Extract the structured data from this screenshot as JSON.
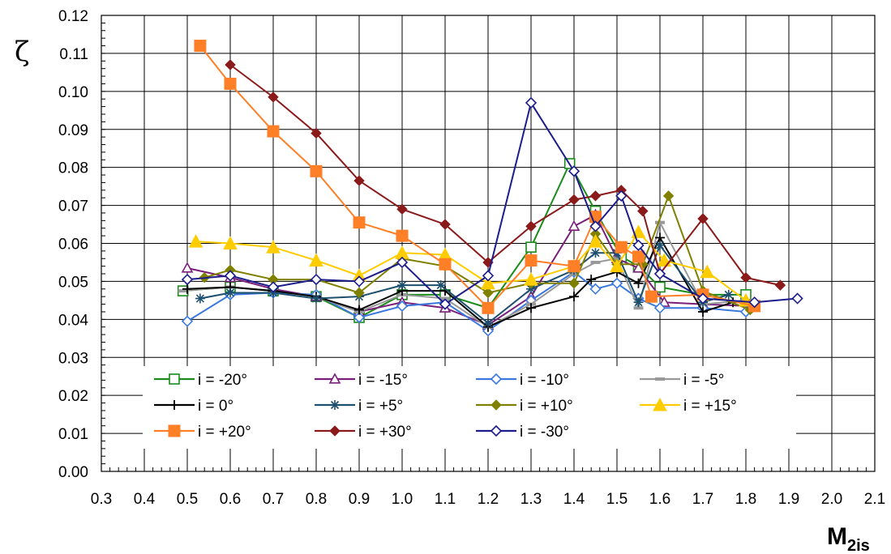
{
  "chart_data": {
    "type": "line",
    "title": "",
    "ylabel": "ζ",
    "xlabel": "M",
    "xlabel_sub": "2is",
    "xlim": [
      0.3,
      2.1
    ],
    "ylim": [
      0.0,
      0.12
    ],
    "x_ticks": [
      "0.3",
      "0.4",
      "0.5",
      "0.6",
      "0.7",
      "0.8",
      "0.9",
      "1.0",
      "1.1",
      "1.2",
      "1.3",
      "1.4",
      "1.5",
      "1.6",
      "1.7",
      "1.8",
      "1.9",
      "2.0",
      "2.1"
    ],
    "y_ticks": [
      "0.00",
      "0.01",
      "0.02",
      "0.03",
      "0.04",
      "0.05",
      "0.06",
      "0.07",
      "0.08",
      "0.09",
      "0.10",
      "0.11",
      "0.12"
    ],
    "grid": true,
    "legend_position": "bottom-inside",
    "series": [
      {
        "name": "i = -20°",
        "color": "#1a8c1a",
        "marker": "square-open",
        "x": [
          0.49,
          0.6,
          0.7,
          0.8,
          0.9,
          1.0,
          1.1,
          1.2,
          1.3,
          1.39,
          1.45,
          1.51,
          1.55,
          1.6,
          1.7,
          1.8
        ],
        "y": [
          0.0475,
          0.0485,
          0.0475,
          0.046,
          0.0405,
          0.0465,
          0.0465,
          0.043,
          0.059,
          0.081,
          0.0685,
          0.0565,
          0.054,
          0.0485,
          0.0465,
          0.0465
        ]
      },
      {
        "name": "i = -15°",
        "color": "#7a1f7a",
        "marker": "triangle-open",
        "x": [
          0.5,
          0.6,
          0.7,
          0.8,
          0.9,
          1.0,
          1.1,
          1.2,
          1.3,
          1.4,
          1.45,
          1.5,
          1.55,
          1.61,
          1.7,
          1.81
        ],
        "y": [
          0.0535,
          0.051,
          0.048,
          0.046,
          0.042,
          0.0445,
          0.043,
          0.0385,
          0.046,
          0.0645,
          0.0675,
          0.056,
          0.0535,
          0.0445,
          0.044,
          0.0435
        ]
      },
      {
        "name": "i = -10°",
        "color": "#3a78e0",
        "marker": "diamond-open",
        "x": [
          0.5,
          0.6,
          0.7,
          0.8,
          0.9,
          1.0,
          1.1,
          1.2,
          1.3,
          1.4,
          1.45,
          1.5,
          1.55,
          1.6,
          1.7,
          1.8
        ],
        "y": [
          0.0395,
          0.0465,
          0.047,
          0.0465,
          0.0405,
          0.0435,
          0.0445,
          0.037,
          0.045,
          0.0525,
          0.048,
          0.0495,
          0.0455,
          0.043,
          0.043,
          0.042
        ]
      },
      {
        "name": "i = -5°",
        "color": "#999999",
        "marker": "dash",
        "x": [
          0.49,
          0.6,
          0.7,
          0.8,
          0.9,
          1.0,
          1.1,
          1.2,
          1.3,
          1.4,
          1.45,
          1.5,
          1.55,
          1.6,
          1.7,
          1.8
        ],
        "y": [
          0.0475,
          0.0485,
          0.0475,
          0.046,
          0.042,
          0.0465,
          0.0455,
          0.038,
          0.044,
          0.052,
          0.055,
          0.056,
          0.043,
          0.0655,
          0.044,
          0.045
        ]
      },
      {
        "name": "i = 0°",
        "color": "#000000",
        "marker": "plus",
        "x": [
          0.5,
          0.6,
          0.7,
          0.8,
          0.9,
          1.0,
          1.1,
          1.2,
          1.3,
          1.4,
          1.44,
          1.5,
          1.55,
          1.6,
          1.7,
          1.77
        ],
        "y": [
          0.048,
          0.0485,
          0.0475,
          0.046,
          0.0425,
          0.0475,
          0.0475,
          0.038,
          0.043,
          0.046,
          0.0505,
          0.0525,
          0.0495,
          0.0615,
          0.042,
          0.0445
        ]
      },
      {
        "name": "i = +5°",
        "color": "#1d4f6e",
        "marker": "asterisk",
        "x": [
          0.53,
          0.6,
          0.7,
          0.8,
          0.9,
          1.0,
          1.09,
          1.2,
          1.3,
          1.4,
          1.45,
          1.5,
          1.55,
          1.6,
          1.7,
          1.76
        ],
        "y": [
          0.0455,
          0.047,
          0.047,
          0.0455,
          0.046,
          0.049,
          0.049,
          0.039,
          0.048,
          0.053,
          0.0575,
          0.0575,
          0.0445,
          0.0595,
          0.0445,
          0.0465
        ]
      },
      {
        "name": "i = +10°",
        "color": "#808000",
        "marker": "diamond",
        "x": [
          0.54,
          0.6,
          0.7,
          0.8,
          0.9,
          1.0,
          1.1,
          1.2,
          1.3,
          1.4,
          1.45,
          1.5,
          1.56,
          1.62,
          1.7,
          1.81
        ],
        "y": [
          0.051,
          0.053,
          0.0505,
          0.0505,
          0.047,
          0.056,
          0.054,
          0.047,
          0.0495,
          0.0495,
          0.0625,
          0.0545,
          0.0545,
          0.0725,
          0.0475,
          0.0425
        ]
      },
      {
        "name": "i = +15°",
        "color": "#ffcc00",
        "marker": "triangle",
        "x": [
          0.52,
          0.6,
          0.7,
          0.8,
          0.9,
          1.0,
          1.1,
          1.2,
          1.3,
          1.4,
          1.45,
          1.5,
          1.55,
          1.61,
          1.71,
          1.8
        ],
        "y": [
          0.0605,
          0.06,
          0.059,
          0.0555,
          0.0515,
          0.0575,
          0.057,
          0.0495,
          0.0505,
          0.054,
          0.0605,
          0.054,
          0.063,
          0.0555,
          0.0525,
          0.045
        ]
      },
      {
        "name": "i = +20°",
        "color": "#ff7f27",
        "marker": "square",
        "x": [
          0.53,
          0.6,
          0.7,
          0.8,
          0.9,
          1.0,
          1.1,
          1.2,
          1.3,
          1.4,
          1.45,
          1.51,
          1.55,
          1.58,
          1.7,
          1.82
        ],
        "y": [
          0.112,
          0.102,
          0.0895,
          0.079,
          0.0655,
          0.062,
          0.0545,
          0.043,
          0.0555,
          0.054,
          0.067,
          0.059,
          0.0565,
          0.046,
          0.0465,
          0.0435
        ]
      },
      {
        "name": "i = +30°",
        "color": "#8b1a1a",
        "marker": "diamond",
        "x": [
          0.6,
          0.7,
          0.8,
          0.9,
          1.0,
          1.1,
          1.2,
          1.3,
          1.4,
          1.45,
          1.51,
          1.56,
          1.6,
          1.7,
          1.8,
          1.88
        ],
        "y": [
          0.107,
          0.0985,
          0.089,
          0.0765,
          0.069,
          0.065,
          0.055,
          0.0645,
          0.0715,
          0.0725,
          0.074,
          0.0685,
          0.052,
          0.0665,
          0.051,
          0.049
        ]
      },
      {
        "name": "i = -30°",
        "color": "#1c1c8c",
        "marker": "diamond-open",
        "x": [
          0.5,
          0.6,
          0.7,
          0.8,
          0.9,
          1.0,
          1.1,
          1.2,
          1.3,
          1.4,
          1.45,
          1.51,
          1.55,
          1.6,
          1.7,
          1.82,
          1.92
        ],
        "y": [
          0.0505,
          0.0515,
          0.0485,
          0.0505,
          0.05,
          0.055,
          0.044,
          0.0515,
          0.097,
          0.079,
          0.0645,
          0.0725,
          0.0595,
          0.052,
          0.0455,
          0.0445,
          0.0455
        ]
      }
    ]
  }
}
